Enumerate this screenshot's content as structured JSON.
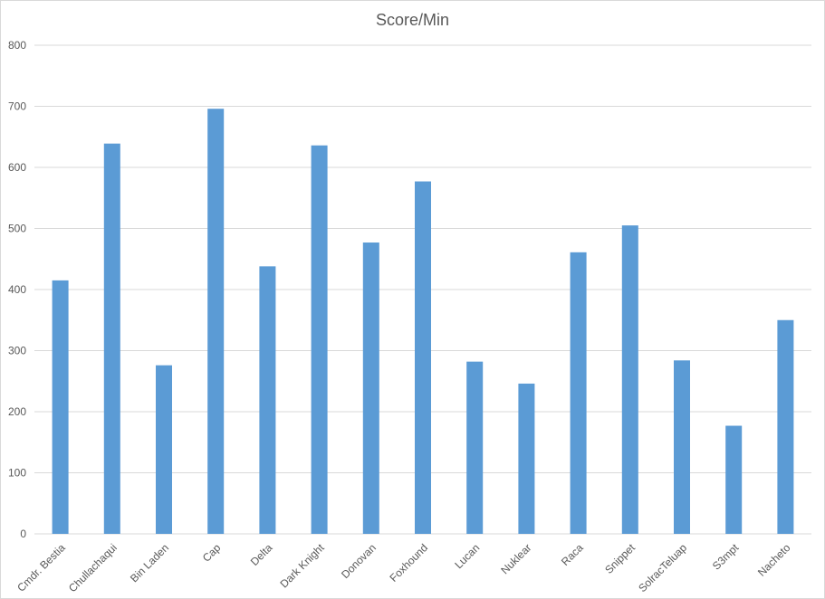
{
  "chart_data": {
    "type": "bar",
    "title": "Score/Min",
    "xlabel": "",
    "ylabel": "",
    "ylim": [
      0,
      800
    ],
    "y_ticks": [
      0,
      100,
      200,
      300,
      400,
      500,
      600,
      700,
      800
    ],
    "grid": true,
    "legend": "none",
    "categories": [
      "Cmdr. Bestia",
      "Chullachaqui",
      "Bin Laden",
      "Cap",
      "Delta",
      "Dark Knight",
      "Donovan",
      "Foxhound",
      "Lucan",
      "Nuklear",
      "Raca",
      "Snippet",
      "SolracTeluap",
      "S3mpt",
      "Nacheto"
    ],
    "values": [
      415,
      639,
      276,
      696,
      438,
      636,
      477,
      577,
      282,
      246,
      461,
      505,
      284,
      177,
      350
    ],
    "bar_color": "#5b9bd5",
    "grid_color": "#d9d9d9",
    "text_color": "#595959"
  }
}
